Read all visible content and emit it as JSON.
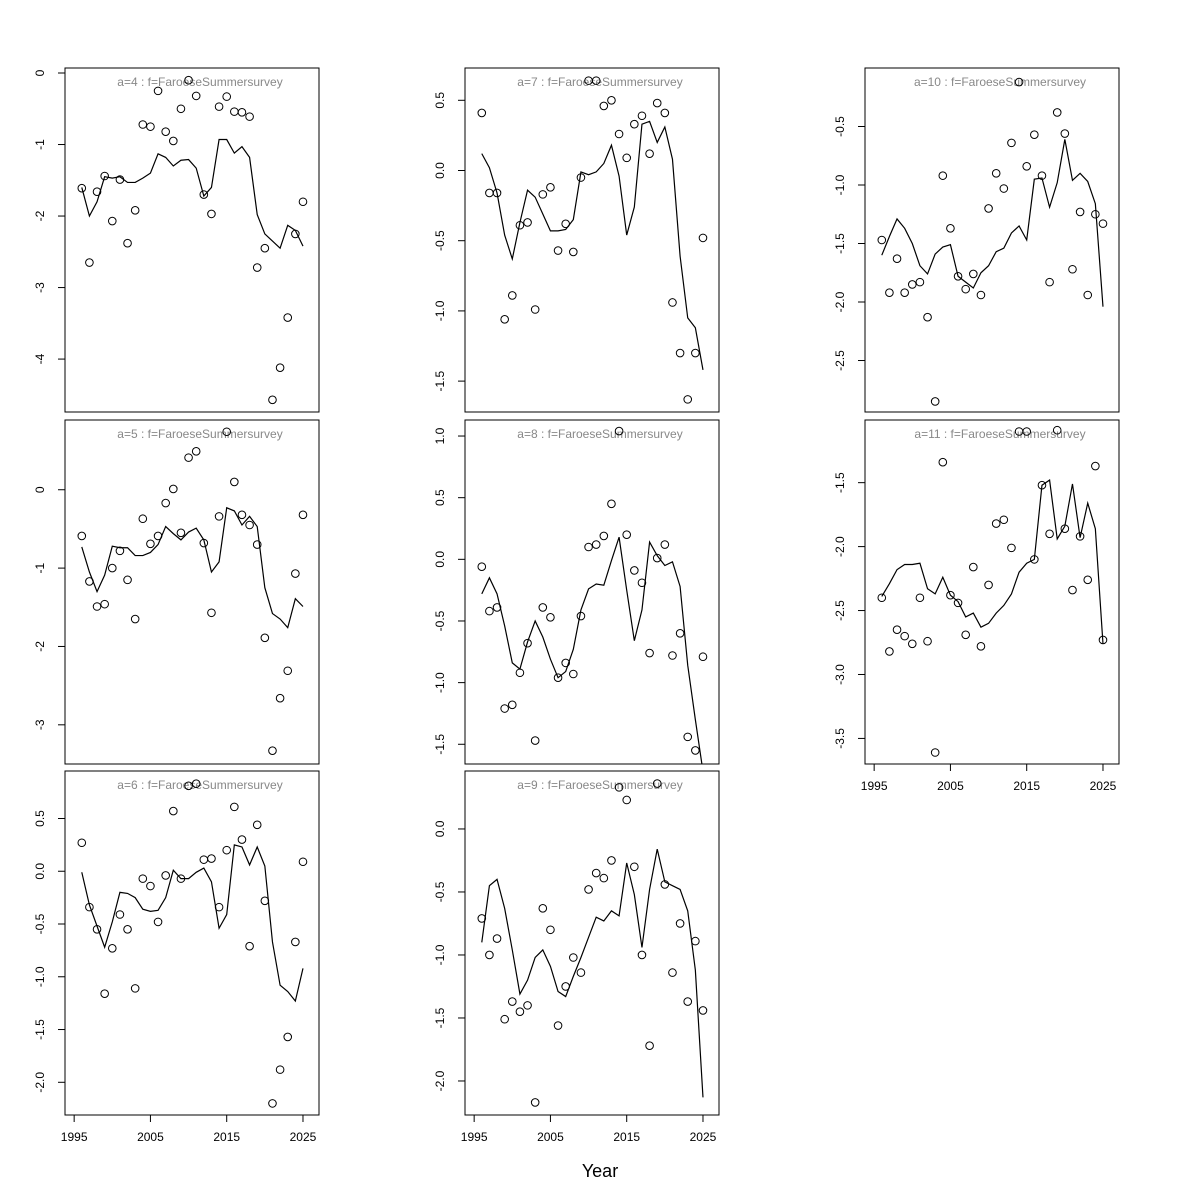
{
  "xlabel": "Year",
  "chart_data": [
    {
      "type": "scatter",
      "title": "a=4  :  f=FaroeseSummersurvey",
      "x": [
        1996,
        1997,
        1998,
        1999,
        2000,
        2001,
        2002,
        2003,
        2004,
        2005,
        2006,
        2007,
        2008,
        2009,
        2010,
        2011,
        2012,
        2013,
        2014,
        2015,
        2016,
        2017,
        2018,
        2019,
        2020,
        2021,
        2022,
        2023,
        2024,
        2025
      ],
      "series": [
        {
          "mark": "point",
          "color": "#000000",
          "values": [
            -1.61,
            -2.65,
            -1.66,
            -1.44,
            -2.07,
            -1.49,
            -2.38,
            -1.92,
            -0.72,
            -0.75,
            -0.25,
            -0.82,
            -0.95,
            -0.5,
            -0.1,
            -0.32,
            -1.7,
            -1.97,
            -0.47,
            -0.33,
            -0.54,
            -0.55,
            -0.61,
            -2.72,
            -2.45,
            -4.57,
            -4.12,
            -3.42,
            -2.25,
            -1.8
          ]
        },
        {
          "mark": "line",
          "color": "#000000",
          "values": [
            -1.6,
            -2.0,
            -1.8,
            -1.45,
            -1.47,
            -1.45,
            -1.53,
            -1.53,
            -1.47,
            -1.4,
            -1.13,
            -1.18,
            -1.3,
            -1.22,
            -1.21,
            -1.33,
            -1.72,
            -1.6,
            -0.93,
            -0.93,
            -1.12,
            -1.03,
            -1.18,
            -1.98,
            -2.25,
            -2.35,
            -2.45,
            -2.13,
            -2.2,
            -2.42
          ]
        }
      ],
      "xlim": [
        1993.8,
        2027.1
      ],
      "ylim": [
        -4.74,
        0.07
      ],
      "yticks": [
        0,
        -1,
        -2,
        -3,
        -4
      ]
    },
    {
      "type": "scatter",
      "title": "a=5  :  f=FaroeseSummersurvey",
      "x": [
        1996,
        1997,
        1998,
        1999,
        2000,
        2001,
        2002,
        2003,
        2004,
        2005,
        2006,
        2007,
        2008,
        2009,
        2010,
        2011,
        2012,
        2013,
        2014,
        2015,
        2016,
        2017,
        2018,
        2019,
        2020,
        2021,
        2022,
        2023,
        2024,
        2025
      ],
      "series": [
        {
          "mark": "point",
          "color": "#000000",
          "values": [
            -0.59,
            -1.17,
            -1.49,
            -1.46,
            -1.0,
            -0.78,
            -1.15,
            -1.65,
            -0.37,
            -0.69,
            -0.59,
            -0.17,
            0.01,
            -0.55,
            0.41,
            0.49,
            -0.68,
            -1.57,
            -0.34,
            0.74,
            0.1,
            -0.32,
            -0.45,
            -0.7,
            -1.89,
            -3.33,
            -2.66,
            -2.31,
            -1.07,
            -0.32
          ]
        },
        {
          "mark": "line",
          "color": "#000000",
          "values": [
            -0.73,
            -1.05,
            -1.3,
            -1.09,
            -0.72,
            -0.74,
            -0.74,
            -0.84,
            -0.84,
            -0.8,
            -0.7,
            -0.47,
            -0.56,
            -0.64,
            -0.54,
            -0.49,
            -0.64,
            -1.05,
            -0.92,
            -0.23,
            -0.27,
            -0.45,
            -0.34,
            -0.47,
            -1.25,
            -1.58,
            -1.65,
            -1.76,
            -1.39,
            -1.49
          ]
        }
      ],
      "xlim": [
        1993.8,
        2027.1
      ],
      "ylim": [
        -3.5,
        0.89
      ],
      "yticks": [
        0,
        -1,
        -2,
        -3
      ]
    },
    {
      "type": "scatter",
      "title": "a=6  :  f=FaroeseSummersurvey",
      "x": [
        1996,
        1997,
        1998,
        1999,
        2000,
        2001,
        2002,
        2003,
        2004,
        2005,
        2006,
        2007,
        2008,
        2009,
        2010,
        2011,
        2012,
        2013,
        2014,
        2015,
        2016,
        2017,
        2018,
        2019,
        2020,
        2021,
        2022,
        2023,
        2024,
        2025
      ],
      "series": [
        {
          "mark": "point",
          "color": "#000000",
          "values": [
            0.27,
            -0.34,
            -0.55,
            -1.16,
            -0.73,
            -0.41,
            -0.55,
            -1.11,
            -0.07,
            -0.14,
            -0.48,
            -0.04,
            0.57,
            -0.07,
            0.81,
            0.83,
            0.11,
            0.12,
            -0.34,
            0.2,
            0.61,
            0.3,
            -0.71,
            0.44,
            -0.28,
            -2.2,
            -1.88,
            -1.57,
            -0.67,
            0.09
          ]
        },
        {
          "mark": "line",
          "color": "#000000",
          "values": [
            -0.01,
            -0.32,
            -0.52,
            -0.72,
            -0.48,
            -0.2,
            -0.21,
            -0.25,
            -0.36,
            -0.38,
            -0.37,
            -0.25,
            0.01,
            -0.07,
            -0.07,
            -0.01,
            0.03,
            -0.1,
            -0.54,
            -0.41,
            0.25,
            0.23,
            0.06,
            0.23,
            0.05,
            -0.67,
            -1.08,
            -1.14,
            -1.23,
            -0.92
          ]
        }
      ],
      "xlim": [
        1993.8,
        2027.1
      ],
      "ylim": [
        -2.31,
        0.95
      ],
      "yticks": [
        0.5,
        {
          "value": 0,
          "label": "0.0"
        },
        -0.5,
        {
          "value": -1,
          "label": "-1.0"
        },
        -1.5,
        {
          "value": -2,
          "label": "-2.0"
        }
      ],
      "xticks": [
        1995,
        2005,
        2015,
        2025
      ]
    },
    {
      "type": "scatter",
      "title": "a=7  :  f=FaroeseSummersurvey",
      "x": [
        1996,
        1997,
        1998,
        1999,
        2000,
        2001,
        2002,
        2003,
        2004,
        2005,
        2006,
        2007,
        2008,
        2009,
        2010,
        2011,
        2012,
        2013,
        2014,
        2015,
        2016,
        2017,
        2018,
        2019,
        2020,
        2021,
        2022,
        2023,
        2024,
        2025
      ],
      "series": [
        {
          "mark": "point",
          "color": "#000000",
          "values": [
            0.41,
            -0.16,
            -0.16,
            -1.06,
            -0.89,
            -0.39,
            -0.37,
            -0.99,
            -0.17,
            -0.12,
            -0.57,
            -0.38,
            -0.58,
            -0.05,
            0.64,
            0.64,
            0.46,
            0.5,
            0.26,
            0.09,
            0.33,
            0.39,
            0.12,
            0.48,
            0.41,
            -0.94,
            -1.3,
            -1.63,
            -1.3,
            -0.48
          ]
        },
        {
          "mark": "line",
          "color": "#000000",
          "values": [
            0.12,
            0.02,
            -0.16,
            -0.46,
            -0.63,
            -0.37,
            -0.14,
            -0.19,
            -0.31,
            -0.43,
            -0.43,
            -0.42,
            -0.35,
            -0.01,
            -0.03,
            -0.01,
            0.05,
            0.18,
            -0.04,
            -0.46,
            -0.26,
            0.33,
            0.35,
            0.2,
            0.31,
            0.08,
            -0.61,
            -1.05,
            -1.12,
            -1.42
          ]
        }
      ],
      "xlim": [
        1993.8,
        2027.1
      ],
      "ylim": [
        -1.72,
        0.73
      ],
      "yticks": [
        0.5,
        {
          "value": 0,
          "label": "0.0"
        },
        -0.5,
        {
          "value": -1,
          "label": "-1.0"
        },
        -1.5
      ]
    },
    {
      "type": "scatter",
      "title": "a=8  :  f=FaroeseSummersurvey",
      "x": [
        1996,
        1997,
        1998,
        1999,
        2000,
        2001,
        2002,
        2003,
        2004,
        2005,
        2006,
        2007,
        2008,
        2009,
        2010,
        2011,
        2012,
        2013,
        2014,
        2015,
        2016,
        2017,
        2018,
        2019,
        2020,
        2021,
        2022,
        2023,
        2024,
        2025
      ],
      "series": [
        {
          "mark": "point",
          "color": "#000000",
          "values": [
            -0.06,
            -0.42,
            -0.39,
            -1.21,
            -1.18,
            -0.92,
            -0.68,
            -1.47,
            -0.39,
            -0.47,
            -0.96,
            -0.84,
            -0.93,
            -0.46,
            0.1,
            0.12,
            0.19,
            0.45,
            1.04,
            0.2,
            -0.09,
            -0.19,
            -0.76,
            0.01,
            0.12,
            -0.78,
            -0.6,
            -1.44,
            -1.55,
            -0.79
          ]
        },
        {
          "mark": "line",
          "color": "#000000",
          "values": [
            -0.28,
            -0.15,
            -0.28,
            -0.54,
            -0.84,
            -0.89,
            -0.67,
            -0.5,
            -0.63,
            -0.81,
            -0.96,
            -0.91,
            -0.73,
            -0.41,
            -0.24,
            -0.2,
            -0.21,
            -0.01,
            0.18,
            -0.25,
            -0.66,
            -0.41,
            0.14,
            0.03,
            -0.05,
            -0.02,
            -0.22,
            -0.86,
            -1.3,
            -1.72
          ]
        }
      ],
      "xlim": [
        1993.8,
        2027.1
      ],
      "ylim": [
        -1.66,
        1.13
      ],
      "yticks": [
        {
          "value": 1,
          "label": "1.0"
        },
        0.5,
        {
          "value": 0,
          "label": "0.0"
        },
        -0.5,
        {
          "value": -1,
          "label": "-1.0"
        },
        -1.5
      ]
    },
    {
      "type": "scatter",
      "title": "a=9  :  f=FaroeseSummersurvey",
      "x": [
        1996,
        1997,
        1998,
        1999,
        2000,
        2001,
        2002,
        2003,
        2004,
        2005,
        2006,
        2007,
        2008,
        2009,
        2010,
        2011,
        2012,
        2013,
        2014,
        2015,
        2016,
        2017,
        2018,
        2019,
        2020,
        2021,
        2022,
        2023,
        2024,
        2025
      ],
      "series": [
        {
          "mark": "point",
          "color": "#000000",
          "values": [
            -0.71,
            -1.0,
            -0.87,
            -1.51,
            -1.37,
            -1.45,
            -1.4,
            -2.17,
            -0.63,
            -0.8,
            -1.56,
            -1.25,
            -1.02,
            -1.14,
            -0.48,
            -0.35,
            -0.39,
            -0.25,
            0.33,
            0.23,
            -0.3,
            -1.0,
            -1.72,
            0.36,
            -0.44,
            -1.14,
            -0.75,
            -1.37,
            -0.89,
            -1.44
          ]
        },
        {
          "mark": "line",
          "color": "#000000",
          "values": [
            -0.9,
            -0.45,
            -0.4,
            -0.63,
            -0.96,
            -1.31,
            -1.2,
            -1.02,
            -0.96,
            -1.09,
            -1.29,
            -1.33,
            -1.17,
            -1.02,
            -0.86,
            -0.7,
            -0.73,
            -0.65,
            -0.69,
            -0.27,
            -0.52,
            -0.94,
            -0.48,
            -0.16,
            -0.42,
            -0.45,
            -0.48,
            -0.65,
            -1.12,
            -2.13
          ]
        }
      ],
      "xlim": [
        1993.8,
        2027.1
      ],
      "ylim": [
        -2.27,
        0.46
      ],
      "yticks": [
        {
          "value": 0,
          "label": "0.0"
        },
        -0.5,
        {
          "value": -1,
          "label": "-1.0"
        },
        -1.5,
        {
          "value": -2,
          "label": "-2.0"
        }
      ],
      "xticks": [
        1995,
        2005,
        2015,
        2025
      ]
    },
    {
      "type": "scatter",
      "title": "a=10  :  f=FaroeseSummersurvey",
      "x": [
        1996,
        1997,
        1998,
        1999,
        2000,
        2001,
        2002,
        2003,
        2004,
        2005,
        2006,
        2007,
        2008,
        2009,
        2010,
        2011,
        2012,
        2013,
        2014,
        2015,
        2016,
        2017,
        2018,
        2019,
        2020,
        2021,
        2022,
        2023,
        2024,
        2025
      ],
      "series": [
        {
          "mark": "point",
          "color": "#000000",
          "values": [
            -1.47,
            -1.92,
            -1.63,
            -1.92,
            -1.85,
            -1.83,
            -2.13,
            -2.85,
            -0.92,
            -1.37,
            -1.78,
            -1.89,
            -1.76,
            -1.94,
            -1.2,
            -0.9,
            -1.03,
            -0.64,
            -0.12,
            -0.84,
            -0.57,
            -0.92,
            -1.83,
            -0.38,
            -0.56,
            -1.72,
            -1.23,
            -1.94,
            -1.25,
            -1.33
          ]
        },
        {
          "mark": "line",
          "color": "#000000",
          "values": [
            -1.6,
            -1.44,
            -1.29,
            -1.37,
            -1.5,
            -1.69,
            -1.76,
            -1.59,
            -1.53,
            -1.51,
            -1.78,
            -1.83,
            -1.88,
            -1.75,
            -1.69,
            -1.57,
            -1.54,
            -1.41,
            -1.35,
            -1.47,
            -0.95,
            -0.94,
            -1.19,
            -0.98,
            -0.61,
            -0.96,
            -0.9,
            -0.97,
            -1.16,
            -2.04
          ]
        }
      ],
      "xlim": [
        1993.8,
        2027.1
      ],
      "ylim": [
        -2.94,
        0.0
      ],
      "yticks": [
        -0.5,
        {
          "value": -1,
          "label": "-1.0"
        },
        -1.5,
        {
          "value": -2,
          "label": "-2.0"
        },
        -2.5
      ]
    },
    {
      "type": "scatter",
      "title": "a=11  :  f=FaroeseSummersurvey",
      "x": [
        1996,
        1997,
        1998,
        1999,
        2000,
        2001,
        2002,
        2003,
        2004,
        2005,
        2006,
        2007,
        2008,
        2009,
        2010,
        2011,
        2012,
        2013,
        2014,
        2015,
        2016,
        2017,
        2018,
        2019,
        2020,
        2021,
        2022,
        2023,
        2024,
        2025
      ],
      "series": [
        {
          "mark": "point",
          "color": "#000000",
          "values": [
            -2.4,
            -2.82,
            -2.65,
            -2.7,
            -2.76,
            -2.4,
            -2.74,
            -3.61,
            -1.34,
            -2.38,
            -2.44,
            -2.69,
            -2.16,
            -2.78,
            -2.3,
            -1.82,
            -1.79,
            -2.01,
            -1.1,
            -1.1,
            -2.1,
            -1.52,
            -1.9,
            -1.09,
            -1.86,
            -2.34,
            -1.92,
            -2.26,
            -1.37,
            -2.73
          ]
        },
        {
          "mark": "line",
          "color": "#000000",
          "values": [
            -2.39,
            -2.29,
            -2.18,
            -2.14,
            -2.14,
            -2.13,
            -2.33,
            -2.37,
            -2.24,
            -2.38,
            -2.43,
            -2.55,
            -2.52,
            -2.63,
            -2.6,
            -2.52,
            -2.46,
            -2.37,
            -2.2,
            -2.13,
            -2.1,
            -1.52,
            -1.48,
            -1.94,
            -1.84,
            -1.51,
            -1.93,
            -1.66,
            -1.86,
            -2.76
          ]
        }
      ],
      "xlim": [
        1993.8,
        2027.1
      ],
      "ylim": [
        -3.7,
        -1.01
      ],
      "yticks": [
        -1.5,
        {
          "value": -2,
          "label": "-2.0"
        },
        -2.5,
        {
          "value": -3,
          "label": "-3.0"
        },
        -3.5
      ],
      "xticks": [
        1995,
        2005,
        2015,
        2025
      ]
    }
  ]
}
